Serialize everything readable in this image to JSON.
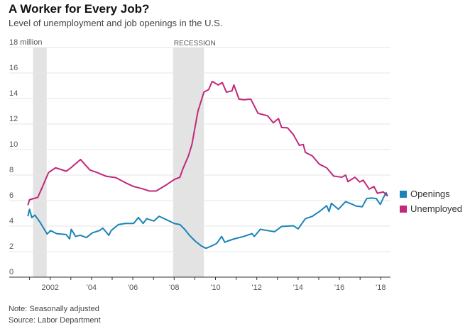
{
  "title": "A Worker for Every Job?",
  "subtitle": "Level of unemployment and job openings in the U.S.",
  "notes": [
    "Note: Seasonally adjusted",
    "Source: Labor Department"
  ],
  "chart_data": {
    "type": "line",
    "title": "A Worker for Every Job?",
    "ylabel": "",
    "ylim": [
      0,
      18
    ],
    "yticks": [
      0,
      2,
      4,
      6,
      8,
      10,
      12,
      14,
      16,
      18
    ],
    "ytick_labels": [
      "0",
      "2",
      "4",
      "6",
      "8",
      "10",
      "12",
      "14",
      "16",
      "18 million"
    ],
    "xticks": [
      2002,
      2004,
      2006,
      2008,
      2010,
      2012,
      2014,
      2016,
      2018
    ],
    "xtick_labels": [
      "2002",
      "'04",
      "'06",
      "'08",
      "'10",
      "'12",
      "'14",
      "'16",
      "'18"
    ],
    "grid": true,
    "legend": "right",
    "recessions": [
      {
        "start": 2001.17,
        "end": 2001.83,
        "label": ""
      },
      {
        "start": 2007.95,
        "end": 2009.44,
        "label": "RECESSION"
      }
    ],
    "series": [
      {
        "name": "Openings",
        "color": "#1a84b8",
        "points": [
          [
            2000.92,
            4.77
          ],
          [
            2001.0,
            5.32
          ],
          [
            2001.11,
            4.67
          ],
          [
            2001.26,
            4.86
          ],
          [
            2001.51,
            4.3
          ],
          [
            2001.85,
            3.38
          ],
          [
            2002.02,
            3.65
          ],
          [
            2002.31,
            3.41
          ],
          [
            2002.77,
            3.34
          ],
          [
            2002.94,
            3.0
          ],
          [
            2003.02,
            3.75
          ],
          [
            2003.23,
            3.19
          ],
          [
            2003.46,
            3.28
          ],
          [
            2003.75,
            3.1
          ],
          [
            2004.04,
            3.47
          ],
          [
            2004.38,
            3.65
          ],
          [
            2004.55,
            3.84
          ],
          [
            2004.84,
            3.28
          ],
          [
            2004.95,
            3.65
          ],
          [
            2005.3,
            4.12
          ],
          [
            2005.64,
            4.21
          ],
          [
            2006.04,
            4.21
          ],
          [
            2006.27,
            4.67
          ],
          [
            2006.5,
            4.21
          ],
          [
            2006.67,
            4.58
          ],
          [
            2007.02,
            4.4
          ],
          [
            2007.27,
            4.77
          ],
          [
            2007.59,
            4.53
          ],
          [
            2008.0,
            4.21
          ],
          [
            2008.28,
            4.12
          ],
          [
            2008.51,
            3.75
          ],
          [
            2008.74,
            3.28
          ],
          [
            2009.02,
            2.82
          ],
          [
            2009.31,
            2.45
          ],
          [
            2009.54,
            2.26
          ],
          [
            2009.82,
            2.45
          ],
          [
            2010.05,
            2.63
          ],
          [
            2010.3,
            3.19
          ],
          [
            2010.45,
            2.73
          ],
          [
            2010.57,
            2.82
          ],
          [
            2010.91,
            3.0
          ],
          [
            2011.37,
            3.19
          ],
          [
            2011.77,
            3.41
          ],
          [
            2011.88,
            3.19
          ],
          [
            2012.17,
            3.75
          ],
          [
            2012.52,
            3.65
          ],
          [
            2012.86,
            3.56
          ],
          [
            2013.2,
            3.97
          ],
          [
            2013.77,
            4.03
          ],
          [
            2014.0,
            3.78
          ],
          [
            2014.35,
            4.58
          ],
          [
            2014.69,
            4.77
          ],
          [
            2015.03,
            5.14
          ],
          [
            2015.38,
            5.6
          ],
          [
            2015.5,
            5.14
          ],
          [
            2015.61,
            5.79
          ],
          [
            2015.95,
            5.32
          ],
          [
            2016.3,
            5.92
          ],
          [
            2016.64,
            5.7
          ],
          [
            2016.81,
            5.57
          ],
          [
            2017.1,
            5.51
          ],
          [
            2017.32,
            6.16
          ],
          [
            2017.55,
            6.2
          ],
          [
            2017.78,
            6.16
          ],
          [
            2017.98,
            5.7
          ],
          [
            2018.12,
            6.2
          ],
          [
            2018.26,
            6.62
          ],
          [
            2018.33,
            6.35
          ]
        ]
      },
      {
        "name": "Unemployed",
        "color": "#c0287a",
        "points": [
          [
            2000.92,
            5.64
          ],
          [
            2001.0,
            6.07
          ],
          [
            2001.4,
            6.25
          ],
          [
            2001.63,
            7.1
          ],
          [
            2001.92,
            8.2
          ],
          [
            2002.26,
            8.57
          ],
          [
            2002.78,
            8.3
          ],
          [
            2003.0,
            8.57
          ],
          [
            2003.47,
            9.22
          ],
          [
            2003.92,
            8.4
          ],
          [
            2004.27,
            8.2
          ],
          [
            2004.72,
            7.9
          ],
          [
            2005.18,
            7.8
          ],
          [
            2005.64,
            7.4
          ],
          [
            2006.04,
            7.1
          ],
          [
            2006.44,
            6.94
          ],
          [
            2006.8,
            6.75
          ],
          [
            2007.13,
            6.75
          ],
          [
            2007.59,
            7.2
          ],
          [
            2008.0,
            7.65
          ],
          [
            2008.28,
            7.83
          ],
          [
            2008.4,
            8.4
          ],
          [
            2008.69,
            9.5
          ],
          [
            2008.86,
            10.4
          ],
          [
            2009.15,
            13.0
          ],
          [
            2009.44,
            14.5
          ],
          [
            2009.67,
            14.7
          ],
          [
            2009.84,
            15.34
          ],
          [
            2010.13,
            15.06
          ],
          [
            2010.33,
            15.25
          ],
          [
            2010.53,
            14.5
          ],
          [
            2010.8,
            14.6
          ],
          [
            2010.89,
            15.07
          ],
          [
            2011.14,
            13.95
          ],
          [
            2011.37,
            13.9
          ],
          [
            2011.71,
            13.95
          ],
          [
            2012.06,
            12.84
          ],
          [
            2012.52,
            12.65
          ],
          [
            2012.8,
            12.1
          ],
          [
            2013.05,
            12.43
          ],
          [
            2013.2,
            11.73
          ],
          [
            2013.49,
            11.7
          ],
          [
            2013.77,
            11.17
          ],
          [
            2014.06,
            10.33
          ],
          [
            2014.25,
            10.4
          ],
          [
            2014.35,
            9.78
          ],
          [
            2014.69,
            9.5
          ],
          [
            2015.03,
            8.85
          ],
          [
            2015.38,
            8.57
          ],
          [
            2015.72,
            7.92
          ],
          [
            2016.12,
            7.83
          ],
          [
            2016.3,
            8.0
          ],
          [
            2016.41,
            7.48
          ],
          [
            2016.75,
            7.83
          ],
          [
            2016.98,
            7.46
          ],
          [
            2017.15,
            7.6
          ],
          [
            2017.44,
            6.9
          ],
          [
            2017.67,
            7.1
          ],
          [
            2017.84,
            6.57
          ],
          [
            2018.12,
            6.68
          ],
          [
            2018.33,
            6.35
          ]
        ]
      }
    ]
  }
}
